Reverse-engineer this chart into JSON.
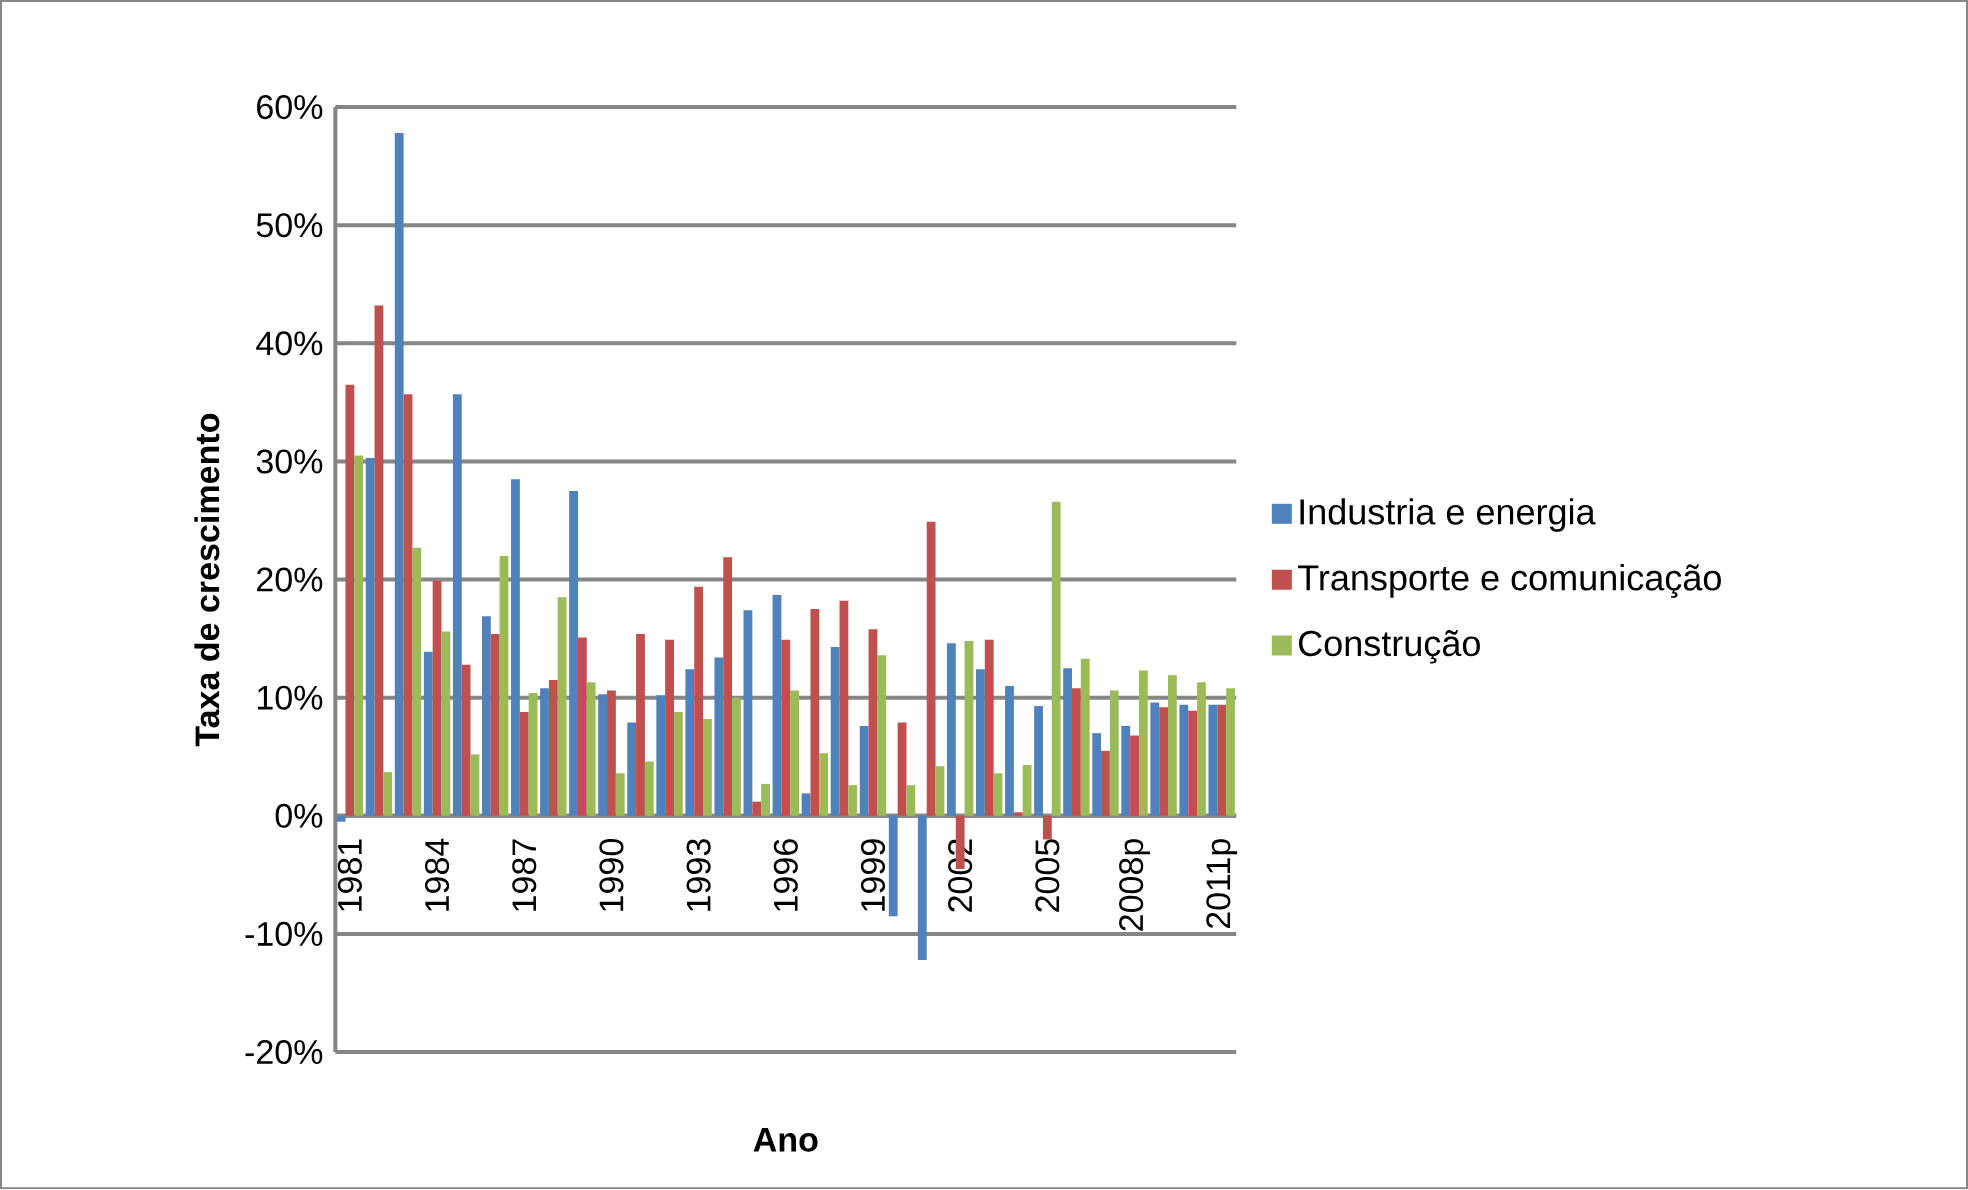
{
  "chart_data": {
    "type": "bar",
    "xlabel": "Ano",
    "ylabel": "Taxa de crescimento",
    "categories": [
      "1981",
      null,
      null,
      "1984",
      null,
      null,
      "1987",
      null,
      null,
      "1990",
      null,
      null,
      "1993",
      null,
      null,
      "1996",
      null,
      null,
      "1999",
      null,
      null,
      "2002",
      null,
      null,
      "2005",
      null,
      null,
      "2008p",
      null,
      null,
      "2011p"
    ],
    "series": [
      {
        "name": "Industria e  energia",
        "color": "#4f81bd",
        "values": [
          -0.5,
          30.3,
          57.8,
          13.9,
          35.7,
          16.9,
          28.5,
          10.8,
          27.5,
          10.3,
          7.9,
          10.2,
          12.4,
          13.4,
          17.4,
          18.7,
          1.9,
          14.3,
          7.6,
          -8.5,
          -12.2,
          14.6,
          12.4,
          11.0,
          9.3,
          12.5,
          7.0,
          7.6,
          9.6,
          9.4,
          9.4
        ]
      },
      {
        "name": "Transporte e comunicação",
        "color": "#c0504d",
        "values": [
          36.5,
          43.2,
          35.7,
          19.9,
          12.8,
          15.4,
          8.8,
          11.5,
          15.1,
          10.6,
          15.4,
          14.9,
          19.4,
          21.9,
          1.2,
          14.9,
          17.5,
          18.2,
          15.8,
          7.9,
          24.9,
          -4.5,
          14.9,
          0.3,
          -2.0,
          10.8,
          5.5,
          6.8,
          9.2,
          8.9,
          9.4
        ]
      },
      {
        "name": "Construção",
        "color": "#9bbb59",
        "values": [
          30.5,
          3.7,
          22.7,
          15.6,
          5.2,
          22.0,
          10.4,
          18.5,
          11.3,
          3.6,
          4.6,
          8.8,
          8.2,
          10.0,
          2.7,
          10.6,
          5.3,
          2.6,
          13.6,
          2.6,
          4.2,
          14.8,
          3.6,
          4.3,
          26.6,
          13.3,
          10.6,
          12.3,
          11.9,
          11.3,
          10.8
        ]
      }
    ],
    "ylim": [
      -20,
      60
    ],
    "yticks": [
      {
        "value": -20,
        "label": "-20%"
      },
      {
        "value": -10,
        "label": "-10%"
      },
      {
        "value": 0,
        "label": "0%"
      },
      {
        "value": 10,
        "label": "10%"
      },
      {
        "value": 20,
        "label": "20%"
      },
      {
        "value": 30,
        "label": "30%"
      },
      {
        "value": 40,
        "label": "40%"
      },
      {
        "value": 50,
        "label": "50%"
      },
      {
        "value": 60,
        "label": "60%"
      }
    ],
    "grid": "y",
    "legend": "right"
  }
}
